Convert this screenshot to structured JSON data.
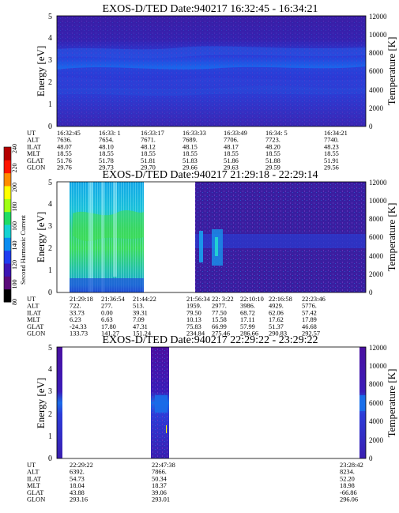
{
  "colorbar": {
    "label": "Second Harmonic Current",
    "ticks": [
      "80",
      "100",
      "120",
      "140",
      "160",
      "180",
      "200",
      "220",
      "240"
    ],
    "colors": [
      "#000000",
      "#5a0a7a",
      "#3c14b4",
      "#1e3cf0",
      "#0a8cf0",
      "#14d2d2",
      "#1edc64",
      "#a0ff14",
      "#ffff00",
      "#ff8c00",
      "#ff1400",
      "#b40000"
    ]
  },
  "panels": [
    {
      "title": "EXOS-D/TED   Date:940217  16:32:45 - 16:34:21",
      "ylabel": "Energy [eV]",
      "rlabel": "Temperature [K]",
      "yticks": [
        "0",
        "1",
        "2",
        "3",
        "4",
        "5"
      ],
      "rticks": [
        "0",
        "2000",
        "4000",
        "6000",
        "8000",
        "10000",
        "12000"
      ],
      "rows": [
        {
          "label": "UT",
          "values": [
            "16:32:45",
            "16:33: 1",
            "16:33:17",
            "16:33:33",
            "16:33:49",
            "16:34: 5",
            "16:34:21"
          ]
        },
        {
          "label": "ALT",
          "values": [
            "7636.",
            "7654.",
            "7671.",
            "7689.",
            "7706.",
            "7723.",
            "7740."
          ]
        },
        {
          "label": "ILAT",
          "values": [
            "48.07",
            "48.10",
            "48.12",
            "48.15",
            "48.17",
            "48.20",
            "48.23"
          ]
        },
        {
          "label": "MLT",
          "values": [
            "18.55",
            "18.55",
            "18.55",
            "18.55",
            "18.55",
            "18.55",
            "18.55"
          ]
        },
        {
          "label": "GLAT",
          "values": [
            "51.76",
            "51.78",
            "51.81",
            "51.83",
            "51.86",
            "51.88",
            "51.91"
          ]
        },
        {
          "label": "GLON",
          "values": [
            "29.76",
            "29.73",
            "29.70",
            "29.66",
            "29.63",
            "29.59",
            "29.56"
          ]
        }
      ]
    },
    {
      "title": "EXOS-D/TED   Date:940217  21:29:18 - 22:29:14",
      "ylabel": "Energy [eV]",
      "rlabel": "Temperature [K]",
      "yticks": [
        "0",
        "1",
        "2",
        "3",
        "4",
        "5"
      ],
      "rticks": [
        "0",
        "2000",
        "4000",
        "6000",
        "8000",
        "10000",
        "12000"
      ],
      "rows": [
        {
          "label": "UT",
          "values": [
            "21:29:18",
            "21:36:54",
            "21:44:22",
            "21:56:34",
            "22: 3:22",
            "22:10:10",
            "22:16:58",
            "22:23:46"
          ]
        },
        {
          "label": "ALT",
          "values": [
            "722.",
            "277.",
            "513.",
            "1959.",
            "2977.",
            "3986.",
            "4929.",
            "5776."
          ]
        },
        {
          "label": "ILAT",
          "values": [
            "33.73",
            "0.00",
            "39.31",
            "79.50",
            "77.50",
            "68.72",
            "62.06",
            "57.42"
          ]
        },
        {
          "label": "MLT",
          "values": [
            "6.23",
            "6.63",
            "7.09",
            "10.13",
            "15.58",
            "17.11",
            "17.62",
            "17.89"
          ]
        },
        {
          "label": "GLAT",
          "values": [
            "-24.33",
            "17.80",
            "47.31",
            "75.83",
            "66.99",
            "57.99",
            "51.37",
            "46.68"
          ]
        },
        {
          "label": "GLON",
          "values": [
            "133.73",
            "141.27",
            "151.24",
            "234.84",
            "275.46",
            "286.66",
            "290.83",
            "292.57"
          ]
        }
      ]
    },
    {
      "title": "EXOS-D/TED   Date:940217  22:29:22 - 23:29:22",
      "ylabel": "Energy [eV]",
      "rlabel": "Temperature [K]",
      "yticks": [
        "0",
        "1",
        "2",
        "3",
        "4",
        "5"
      ],
      "rticks": [
        "0",
        "2000",
        "4000",
        "6000",
        "8000",
        "10000",
        "12000"
      ],
      "rows": [
        {
          "label": "UT",
          "values": [
            "22:29:22",
            "22:47:38",
            "23:28:42"
          ]
        },
        {
          "label": "ALT",
          "values": [
            "6392.",
            "7866.",
            "8234."
          ]
        },
        {
          "label": "ILAT",
          "values": [
            "54.73",
            "50.34",
            "52.20"
          ]
        },
        {
          "label": "MLT",
          "values": [
            "18.04",
            "18.37",
            "18.98"
          ]
        },
        {
          "label": "GLAT",
          "values": [
            "43.88",
            "39.06",
            "-66.86"
          ]
        },
        {
          "label": "GLON",
          "values": [
            "293.16",
            "293.01",
            "296.06"
          ]
        }
      ]
    }
  ],
  "chart_data": [
    {
      "type": "heatmap",
      "title": "EXOS-D/TED   Date:940217  16:32:45 - 16:34:21",
      "ylabel": "Energy [eV]",
      "y2label": "Temperature [K]",
      "ylim": [
        0,
        5
      ],
      "y2lim": [
        0,
        12000
      ],
      "x_range": [
        "16:32:45",
        "16:34:21"
      ],
      "colorbar_label": "Second Harmonic Current",
      "colorbar_range": [
        80,
        240
      ]
    },
    {
      "type": "heatmap",
      "title": "EXOS-D/TED   Date:940217  21:29:18 - 22:29:14",
      "ylabel": "Energy [eV]",
      "y2label": "Temperature [K]",
      "ylim": [
        0,
        5
      ],
      "y2lim": [
        0,
        12000
      ],
      "x_range": [
        "21:29:18",
        "22:29:14"
      ],
      "data_gaps": [
        [
          "21:44:22",
          "21:56:34"
        ]
      ],
      "colorbar_label": "Second Harmonic Current",
      "colorbar_range": [
        80,
        240
      ]
    },
    {
      "type": "heatmap",
      "title": "EXOS-D/TED   Date:940217  22:29:22 - 23:29:22",
      "ylabel": "Energy [eV]",
      "y2label": "Temperature [K]",
      "ylim": [
        0,
        5
      ],
      "y2lim": [
        0,
        12000
      ],
      "x_range": [
        "22:29:22",
        "23:29:22"
      ],
      "data_segments": [
        [
          "22:29:22",
          "22:30:40"
        ],
        [
          "22:44:30",
          "22:49:30"
        ],
        [
          "23:26:30",
          "23:29:22"
        ]
      ],
      "colorbar_label": "Second Harmonic Current",
      "colorbar_range": [
        80,
        240
      ]
    }
  ]
}
